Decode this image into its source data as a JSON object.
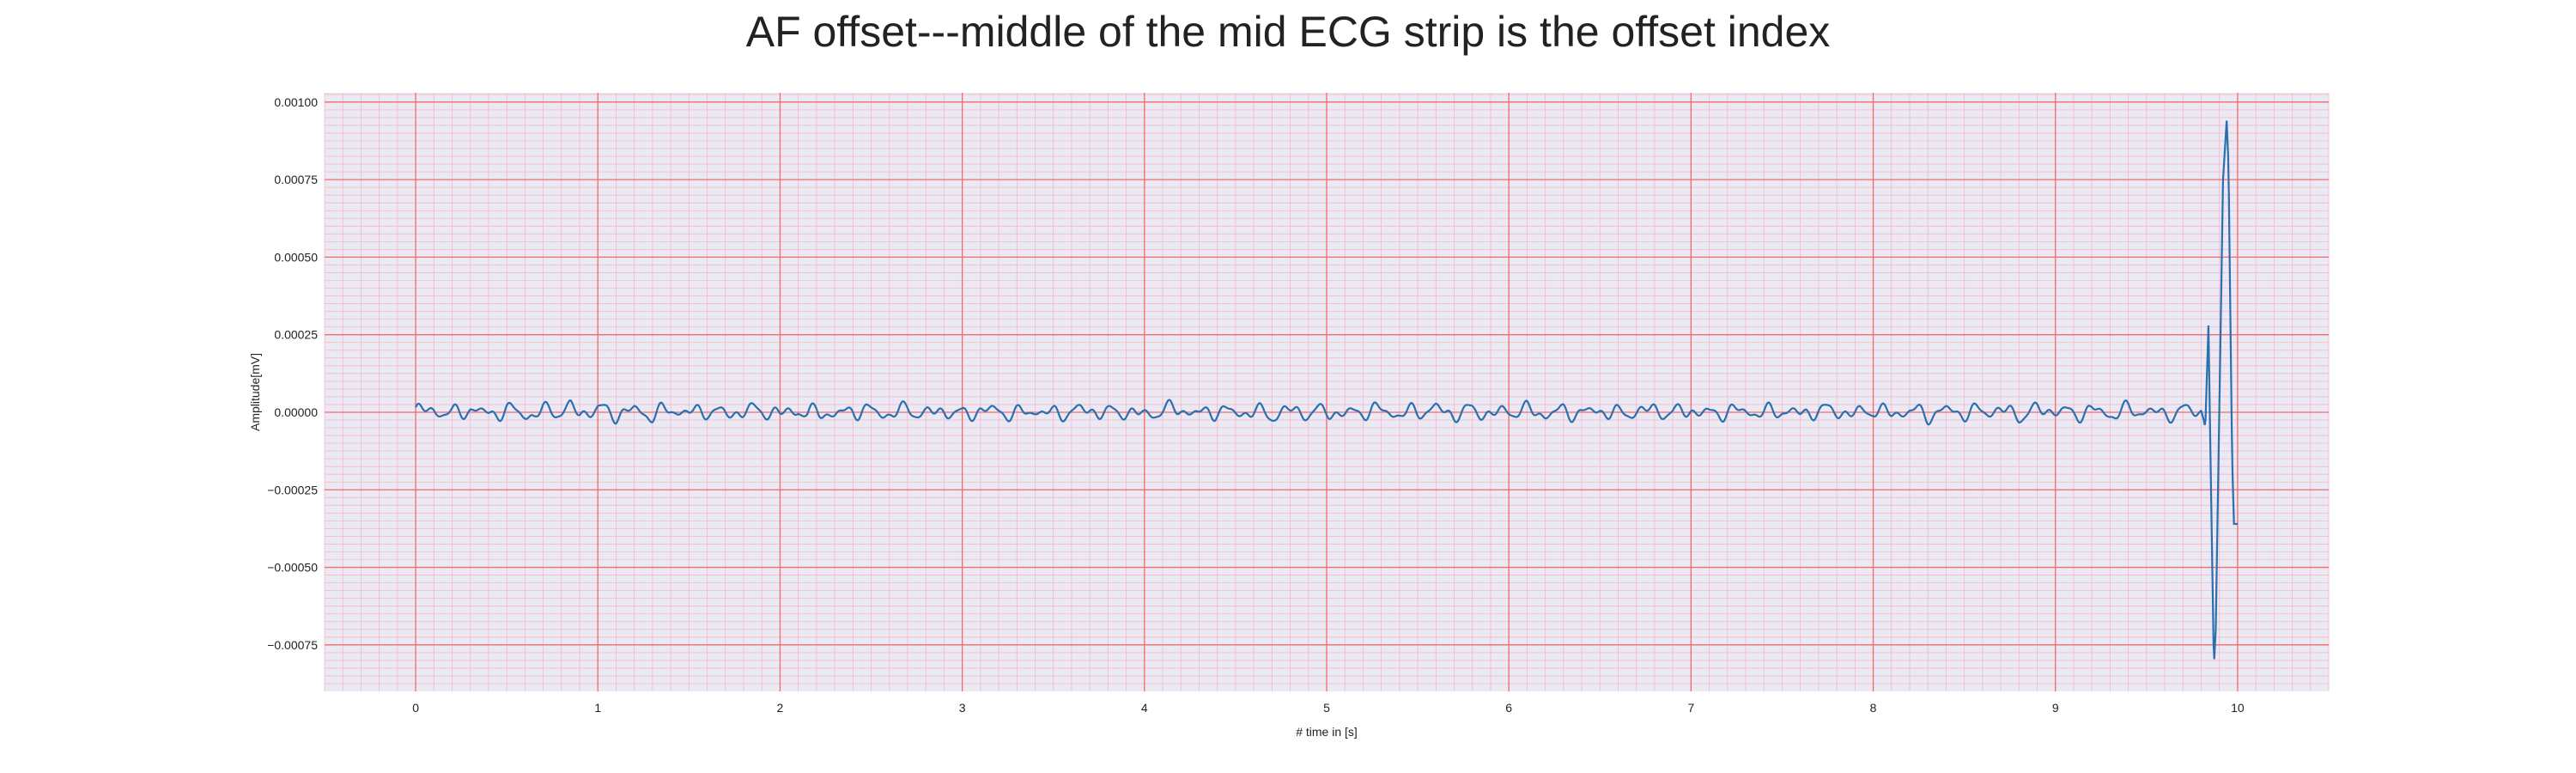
{
  "chart_data": {
    "type": "line",
    "title": "AF offset---middle of the mid ECG strip is the offset index",
    "xlabel": "# time in [s]",
    "ylabel": "Amplitude[mV]",
    "xlim": [
      -0.5,
      10.5
    ],
    "ylim": [
      -0.0009,
      0.00103
    ],
    "x_ticks": [
      0,
      1,
      2,
      3,
      4,
      5,
      6,
      7,
      8,
      9,
      10
    ],
    "x_tick_labels": [
      "0",
      "1",
      "2",
      "3",
      "4",
      "5",
      "6",
      "7",
      "8",
      "9",
      "10"
    ],
    "y_ticks": [
      0.001,
      0.00075,
      0.0005,
      0.00025,
      0.0,
      -0.00025,
      -0.0005,
      -0.00075
    ],
    "y_tick_labels": [
      "0.00100",
      "0.00075",
      "0.00050",
      "0.00025",
      "0.00000",
      "−0.00025",
      "−0.00050",
      "−0.00075"
    ],
    "grid": true,
    "colors": {
      "line": "#2a6fae",
      "background": "#eae9f4",
      "major_grid": "#f26b6b",
      "minor_grid": "#f5b8c6"
    },
    "series": [
      {
        "x": [
          0,
          0.1,
          0.2,
          0.3,
          0.4,
          0.5,
          0.6,
          0.65,
          0.7,
          0.8,
          0.85,
          0.9,
          1.0,
          1.1,
          1.2,
          1.3,
          1.4,
          1.5,
          1.6,
          1.7,
          1.8,
          1.9,
          2.0,
          2.1,
          2.15,
          2.2,
          2.3,
          2.4,
          2.5,
          2.6,
          2.7,
          2.8,
          2.9,
          3.0,
          3.1,
          3.2,
          3.3,
          3.4,
          3.5,
          3.6,
          3.7,
          3.8,
          3.9,
          4.0,
          4.1,
          4.2,
          4.3,
          4.4,
          4.5,
          4.6,
          4.7,
          4.8,
          4.9,
          5.0,
          5.1,
          5.2,
          5.3,
          5.4,
          5.5,
          5.6,
          5.7,
          5.8,
          5.9,
          6.0,
          6.1,
          6.2,
          6.3,
          6.4,
          6.5,
          6.6,
          6.7,
          6.8,
          6.9,
          7.0,
          7.1,
          7.2,
          7.3,
          7.4,
          7.5,
          7.6,
          7.7,
          7.8,
          7.9,
          8.0,
          8.1,
          8.2,
          8.3,
          8.4,
          8.5,
          8.6,
          8.7,
          8.8,
          8.9,
          9.0,
          9.1,
          9.2,
          9.3,
          9.4,
          9.5,
          9.6,
          9.7,
          9.75,
          9.8,
          9.82,
          9.84,
          9.85,
          9.87,
          9.88,
          9.9,
          9.92,
          9.94,
          9.95,
          9.97,
          9.98,
          10.0
        ],
        "y": [
          1e-05,
          2e-05,
          -2e-05,
          3e-05,
          -2e-05,
          2e-05,
          -1e-05,
          -4e-05,
          2e-05,
          1e-05,
          4e-05,
          -1e-05,
          3e-05,
          -2e-05,
          2e-05,
          -3e-05,
          3e-05,
          -1e-05,
          2e-05,
          -2e-05,
          1e-05,
          2e-05,
          -2e-05,
          3e-05,
          -4e-05,
          2e-05,
          -3e-05,
          2e-05,
          1e-05,
          -2e-05,
          3e-05,
          -2e-05,
          2e-05,
          -3e-05,
          2e-05,
          1e-05,
          -2e-05,
          2e-05,
          -2e-05,
          1e-05,
          2e-05,
          -1e-05,
          1e-05,
          -3e-05,
          2e-05,
          3e-05,
          -2e-05,
          2e-05,
          -1e-05,
          1e-05,
          -3e-05,
          2e-05,
          -1e-05,
          1e-05,
          -2e-05,
          1e-05,
          2e-05,
          -2e-05,
          1e-05,
          3e-05,
          -2e-05,
          2e-05,
          -2e-05,
          1e-05,
          2e-05,
          -2e-05,
          1e-05,
          -1e-05,
          2e-05,
          -2e-05,
          1e-05,
          2e-05,
          -1e-05,
          2e-05,
          -2e-05,
          1e-05,
          1e-05,
          -1e-05,
          2e-05,
          -2e-05,
          2e-05,
          1e-05,
          -2e-05,
          3e-05,
          -2e-05,
          2e-05,
          -3e-05,
          2e-05,
          -1e-05,
          1e-05,
          2e-05,
          -3e-05,
          2e-05,
          2e-05,
          -2e-05,
          2e-05,
          -2e-05,
          2e-05,
          1e-05,
          -2e-05,
          1e-05,
          2e-05,
          1e-05,
          -0.0001,
          0.00028,
          -0.0001,
          -0.00082,
          -0.0007,
          2e-05,
          0.00075,
          0.00094,
          0.0008,
          -0.00015,
          -0.00036,
          -0.00036
        ]
      }
    ]
  }
}
